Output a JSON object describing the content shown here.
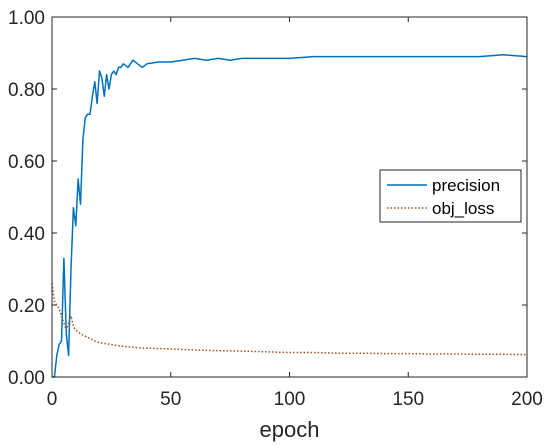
{
  "chart_data": {
    "type": "line",
    "title": "",
    "xlabel": "epoch",
    "ylabel": "",
    "xlim": [
      0,
      200
    ],
    "ylim": [
      0,
      1
    ],
    "x_ticks": [
      "0",
      "50",
      "100",
      "150",
      "200"
    ],
    "y_ticks": [
      "0.00",
      "0.20",
      "0.40",
      "0.60",
      "0.80",
      "1.00"
    ],
    "grid": false,
    "legend_position": "center-right",
    "series": [
      {
        "name": "precision",
        "color": "#0072bd",
        "style": "solid",
        "points": [
          [
            0,
            0.0
          ],
          [
            1,
            0.0
          ],
          [
            2,
            0.06
          ],
          [
            3,
            0.09
          ],
          [
            4,
            0.1
          ],
          [
            5,
            0.33
          ],
          [
            6,
            0.12
          ],
          [
            7,
            0.06
          ],
          [
            8,
            0.3
          ],
          [
            9,
            0.47
          ],
          [
            10,
            0.42
          ],
          [
            11,
            0.55
          ],
          [
            12,
            0.48
          ],
          [
            13,
            0.66
          ],
          [
            14,
            0.72
          ],
          [
            15,
            0.73
          ],
          [
            16,
            0.73
          ],
          [
            17,
            0.78
          ],
          [
            18,
            0.82
          ],
          [
            19,
            0.76
          ],
          [
            20,
            0.85
          ],
          [
            21,
            0.83
          ],
          [
            22,
            0.78
          ],
          [
            23,
            0.84
          ],
          [
            24,
            0.8
          ],
          [
            25,
            0.84
          ],
          [
            26,
            0.85
          ],
          [
            27,
            0.84
          ],
          [
            28,
            0.86
          ],
          [
            29,
            0.86
          ],
          [
            30,
            0.87
          ],
          [
            32,
            0.86
          ],
          [
            34,
            0.88
          ],
          [
            36,
            0.87
          ],
          [
            38,
            0.86
          ],
          [
            40,
            0.87
          ],
          [
            45,
            0.875
          ],
          [
            50,
            0.875
          ],
          [
            55,
            0.88
          ],
          [
            60,
            0.885
          ],
          [
            65,
            0.88
          ],
          [
            70,
            0.885
          ],
          [
            75,
            0.88
          ],
          [
            80,
            0.885
          ],
          [
            90,
            0.885
          ],
          [
            100,
            0.885
          ],
          [
            110,
            0.89
          ],
          [
            120,
            0.89
          ],
          [
            130,
            0.89
          ],
          [
            140,
            0.89
          ],
          [
            150,
            0.89
          ],
          [
            160,
            0.89
          ],
          [
            170,
            0.89
          ],
          [
            180,
            0.89
          ],
          [
            190,
            0.895
          ],
          [
            200,
            0.89
          ]
        ]
      },
      {
        "name": "obj_loss",
        "color": "#a2521a",
        "style": "dotted",
        "points": [
          [
            0,
            0.26
          ],
          [
            1,
            0.21
          ],
          [
            2,
            0.2
          ],
          [
            3,
            0.19
          ],
          [
            4,
            0.17
          ],
          [
            5,
            0.15
          ],
          [
            6,
            0.13
          ],
          [
            7,
            0.15
          ],
          [
            8,
            0.17
          ],
          [
            9,
            0.14
          ],
          [
            10,
            0.13
          ],
          [
            12,
            0.12
          ],
          [
            15,
            0.11
          ],
          [
            18,
            0.1
          ],
          [
            20,
            0.095
          ],
          [
            25,
            0.09
          ],
          [
            30,
            0.085
          ],
          [
            35,
            0.082
          ],
          [
            40,
            0.08
          ],
          [
            50,
            0.078
          ],
          [
            60,
            0.075
          ],
          [
            70,
            0.073
          ],
          [
            80,
            0.072
          ],
          [
            90,
            0.07
          ],
          [
            100,
            0.068
          ],
          [
            110,
            0.068
          ],
          [
            120,
            0.066
          ],
          [
            130,
            0.066
          ],
          [
            140,
            0.065
          ],
          [
            150,
            0.065
          ],
          [
            160,
            0.064
          ],
          [
            170,
            0.064
          ],
          [
            180,
            0.063
          ],
          [
            190,
            0.063
          ],
          [
            200,
            0.062
          ]
        ]
      }
    ]
  }
}
